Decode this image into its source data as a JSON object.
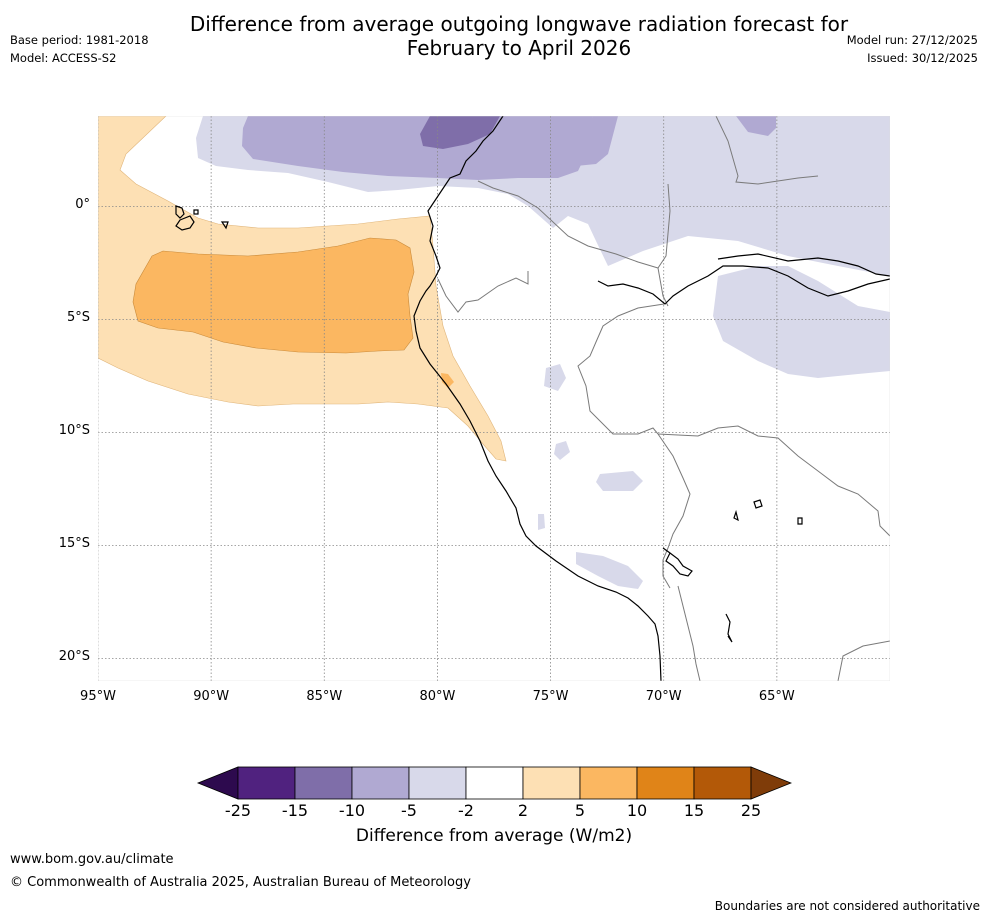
{
  "title": {
    "line1": "Difference from average outgoing longwave radiation forecast for",
    "line2": "February to April 2026"
  },
  "meta": {
    "base_period": "Base period: 1981-2018",
    "model": "Model: ACCESS-S2",
    "model_run": "Model run: 27/12/2025",
    "issued": "Issued: 30/12/2025"
  },
  "map": {
    "lon_range": [
      -95,
      -60
    ],
    "lat_range": [
      -21,
      4
    ],
    "lat_ticks": [
      {
        "value": 0,
        "label": "0°"
      },
      {
        "value": -5,
        "label": "5°S"
      },
      {
        "value": -10,
        "label": "10°S"
      },
      {
        "value": -15,
        "label": "15°S"
      },
      {
        "value": -20,
        "label": "20°S"
      }
    ],
    "lon_ticks": [
      {
        "value": -95,
        "label": "95°W"
      },
      {
        "value": -90,
        "label": "90°W"
      },
      {
        "value": -85,
        "label": "85°W"
      },
      {
        "value": -80,
        "label": "80°W"
      },
      {
        "value": -75,
        "label": "75°W"
      },
      {
        "value": -70,
        "label": "70°W"
      },
      {
        "value": -65,
        "label": "65°W"
      }
    ]
  },
  "colorbar": {
    "title": "Difference from average (W/m2)",
    "labels": [
      "-25",
      "-15",
      "-10",
      "-5",
      "-2",
      "2",
      "5",
      "10",
      "15",
      "25"
    ],
    "colors": [
      "#50227f",
      "#7f6ea9",
      "#b0a9d2",
      "#d8d9ea",
      "#ffffff",
      "#fde0b4",
      "#fbb761",
      "#e08418",
      "#b35908"
    ],
    "under_color": "#2d0a4e",
    "over_color": "#7f3c09"
  },
  "footer": {
    "website": "www.bom.gov.au/climate",
    "copyright": "© Commonwealth of Australia 2025, Australian Bureau of Meteorology",
    "disclaimer": "Boundaries are not considered authoritative"
  }
}
